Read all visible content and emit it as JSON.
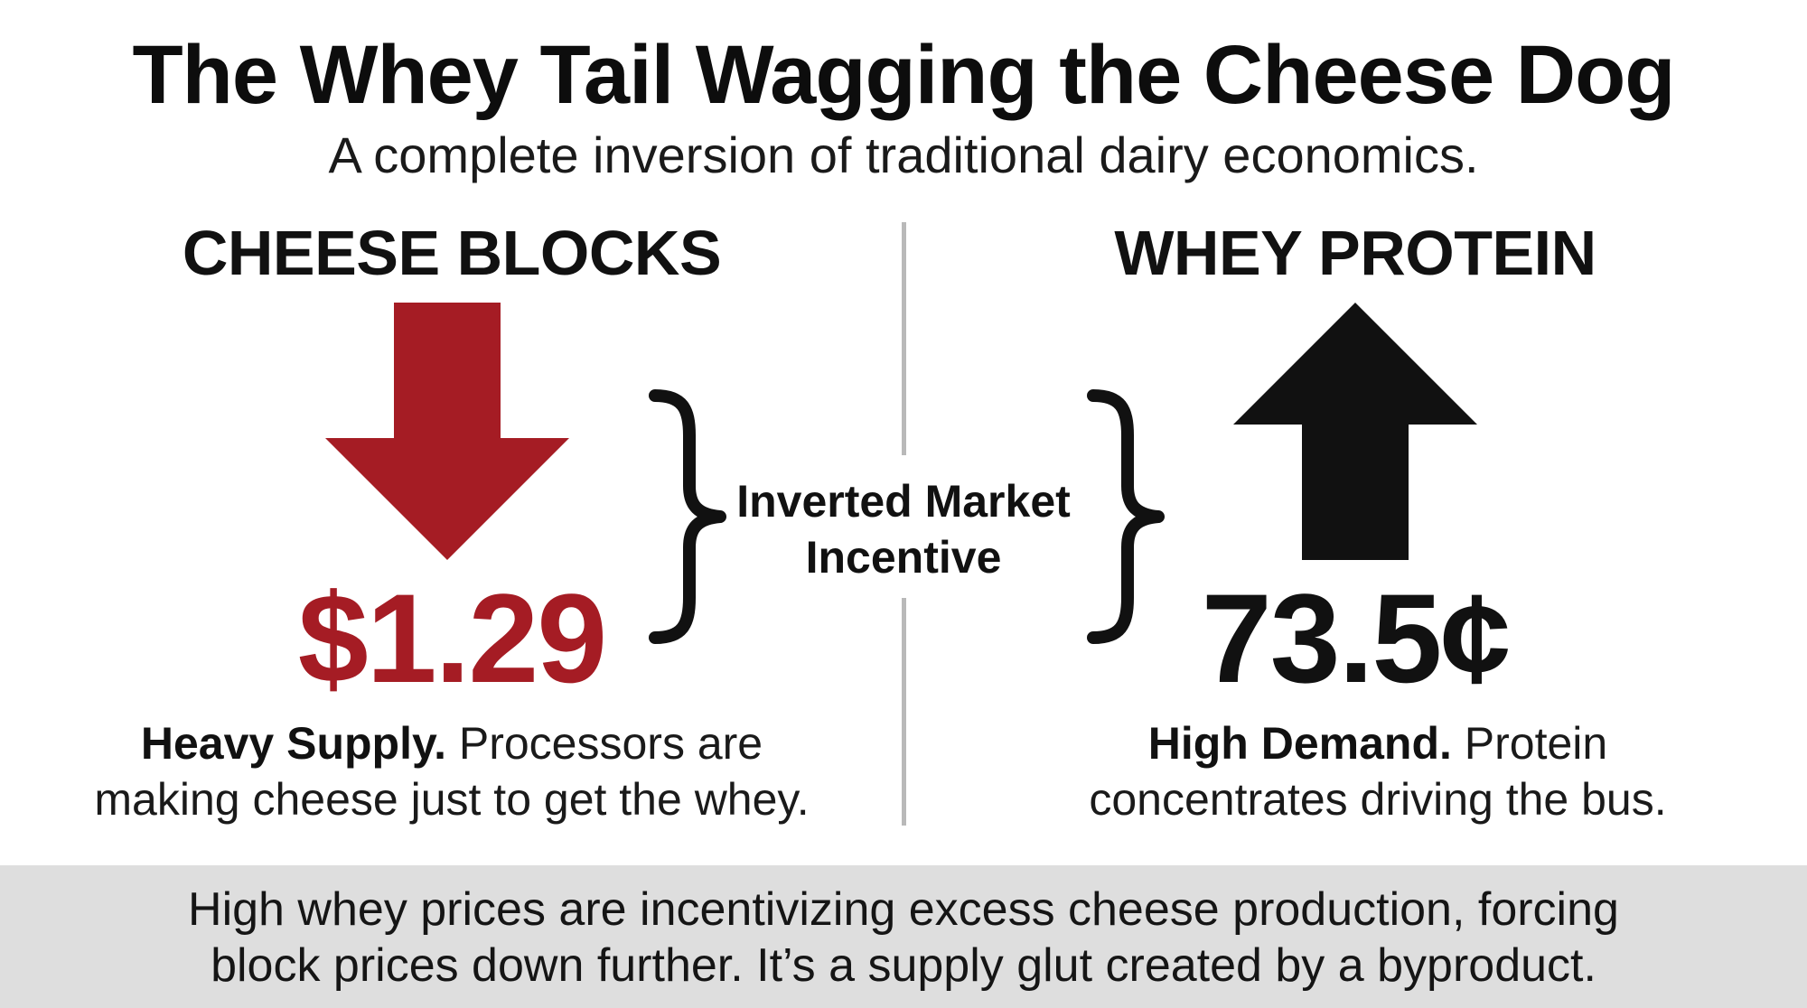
{
  "header": {
    "title": "The Whey Tail Wagging the Cheese Dog",
    "subtitle": "A complete inversion of traditional dairy economics."
  },
  "left": {
    "heading": "CHEESE BLOCKS",
    "arrow": "down-arrow-icon",
    "price": "$1.29",
    "desc_bold": "Heavy Supply.",
    "desc_line1_rest": " Processors are",
    "desc_line2": "making cheese just to get the whey."
  },
  "center": {
    "label_line1": "Inverted Market",
    "label_line2": "Incentive"
  },
  "right": {
    "heading": "WHEY PROTEIN",
    "arrow": "up-arrow-icon",
    "price": "73.5¢",
    "desc_bold": "High Demand.",
    "desc_line1_rest": " Protein",
    "desc_line2": "concentrates driving the bus."
  },
  "footer": {
    "line1": "High whey prices are incentivizing excess cheese production, forcing",
    "line2": "block prices down further. It’s a supply glut created by a byproduct."
  },
  "colors": {
    "accent_red": "#a51c24",
    "dark": "#111111",
    "divider": "#b9b9b9",
    "footer_bg": "#dedede"
  }
}
